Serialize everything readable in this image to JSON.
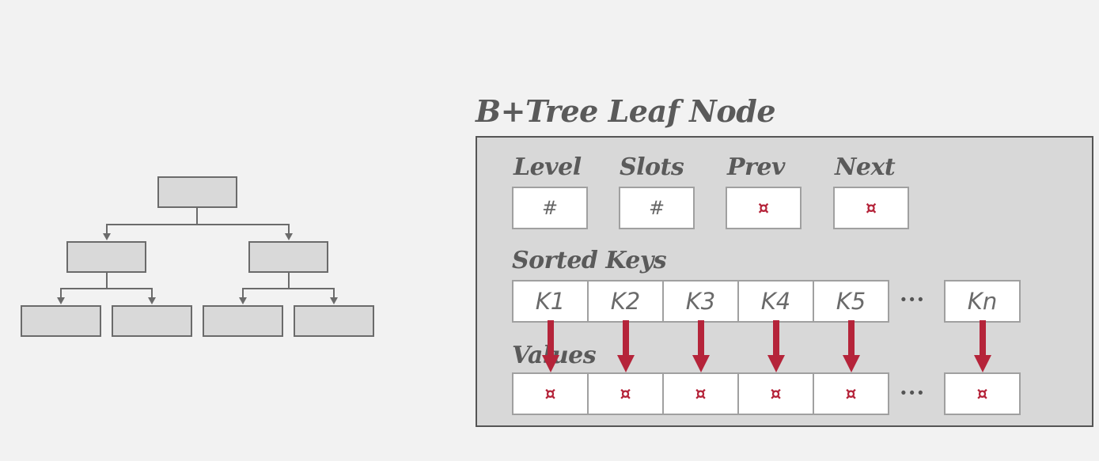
{
  "title": "B+Tree Leaf Node",
  "header": {
    "fields": [
      {
        "label": "Level",
        "value": "#",
        "kind": "number"
      },
      {
        "label": "Slots",
        "value": "#",
        "kind": "number"
      },
      {
        "label": "Prev",
        "value": "¤",
        "kind": "pointer"
      },
      {
        "label": "Next",
        "value": "¤",
        "kind": "pointer"
      }
    ]
  },
  "sorted_keys": {
    "label": "Sorted Keys",
    "keys": [
      "K1",
      "K2",
      "K3",
      "K4",
      "K5"
    ],
    "ellipsis": "···",
    "last_key": "Kn"
  },
  "values": {
    "label": "Values",
    "pointer_glyph": "¤",
    "ellipsis": "···"
  },
  "colors": {
    "accent": "#b5243a",
    "text": "#5a5a5a",
    "node_bg": "#d8d8d8",
    "page_bg": "#f2f2f2"
  }
}
